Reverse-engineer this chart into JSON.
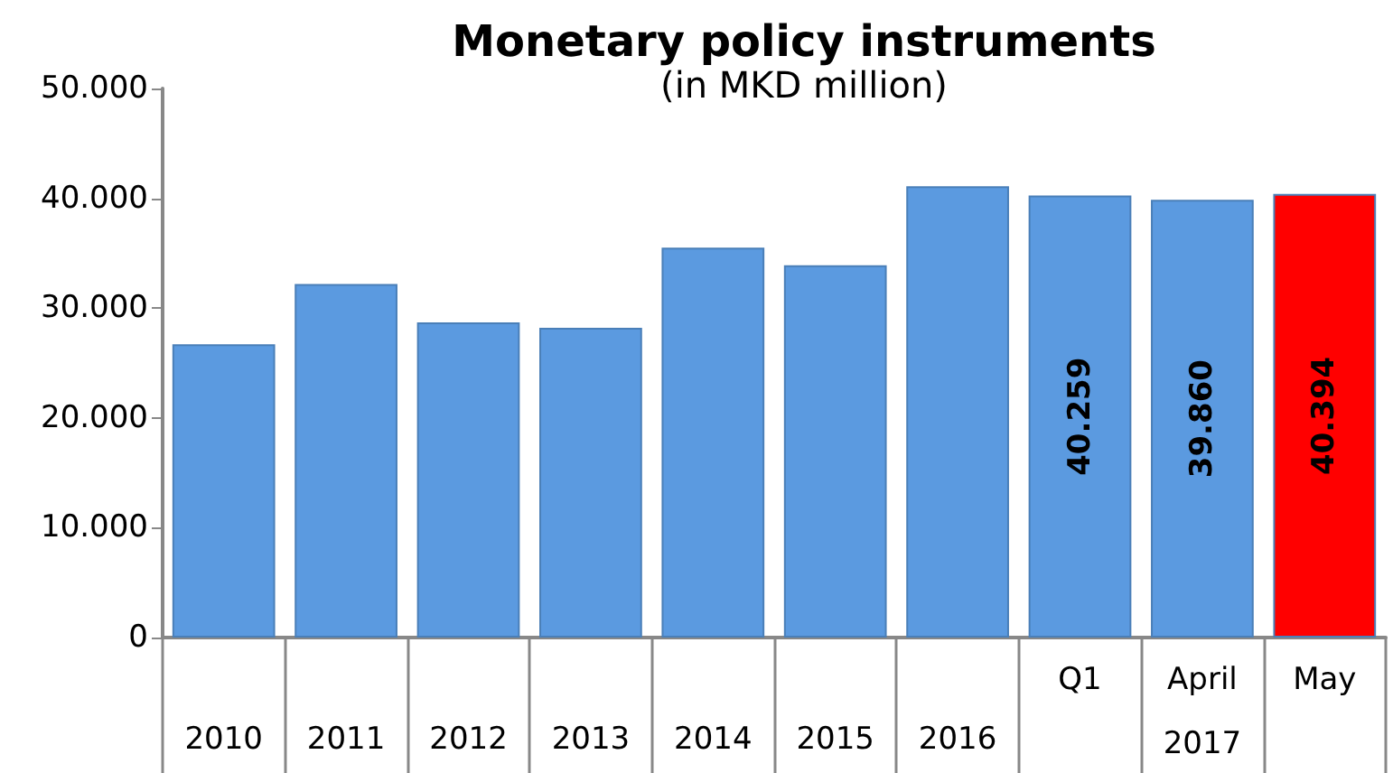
{
  "chart_data": {
    "type": "bar",
    "title": "Monetary policy instruments",
    "subtitle": "(in MKD million)",
    "categories": [
      "2010",
      "2011",
      "2012",
      "2013",
      "2014",
      "2015",
      "2016",
      "Q1",
      "April",
      "May"
    ],
    "values": [
      26700,
      32200,
      28700,
      28200,
      35500,
      33900,
      41100,
      40259,
      39860,
      40394
    ],
    "colors": [
      "#5b9ae0",
      "#5b9ae0",
      "#5b9ae0",
      "#5b9ae0",
      "#5b9ae0",
      "#5b9ae0",
      "#5b9ae0",
      "#5b9ae0",
      "#5b9ae0",
      "#ff0000"
    ],
    "value_labels": [
      null,
      null,
      null,
      null,
      null,
      null,
      null,
      "40.259",
      "39.860",
      "40.394"
    ],
    "ylim": [
      0,
      50000
    ],
    "yticks": [
      {
        "value": 0,
        "label": "0"
      },
      {
        "value": 10000,
        "label": "10.000"
      },
      {
        "value": 20000,
        "label": "20.000"
      },
      {
        "value": 30000,
        "label": "30.000"
      },
      {
        "value": 40000,
        "label": "40.000"
      },
      {
        "value": 50000,
        "label": "50.000"
      }
    ],
    "annotations": [
      "2017"
    ],
    "grid": false
  }
}
